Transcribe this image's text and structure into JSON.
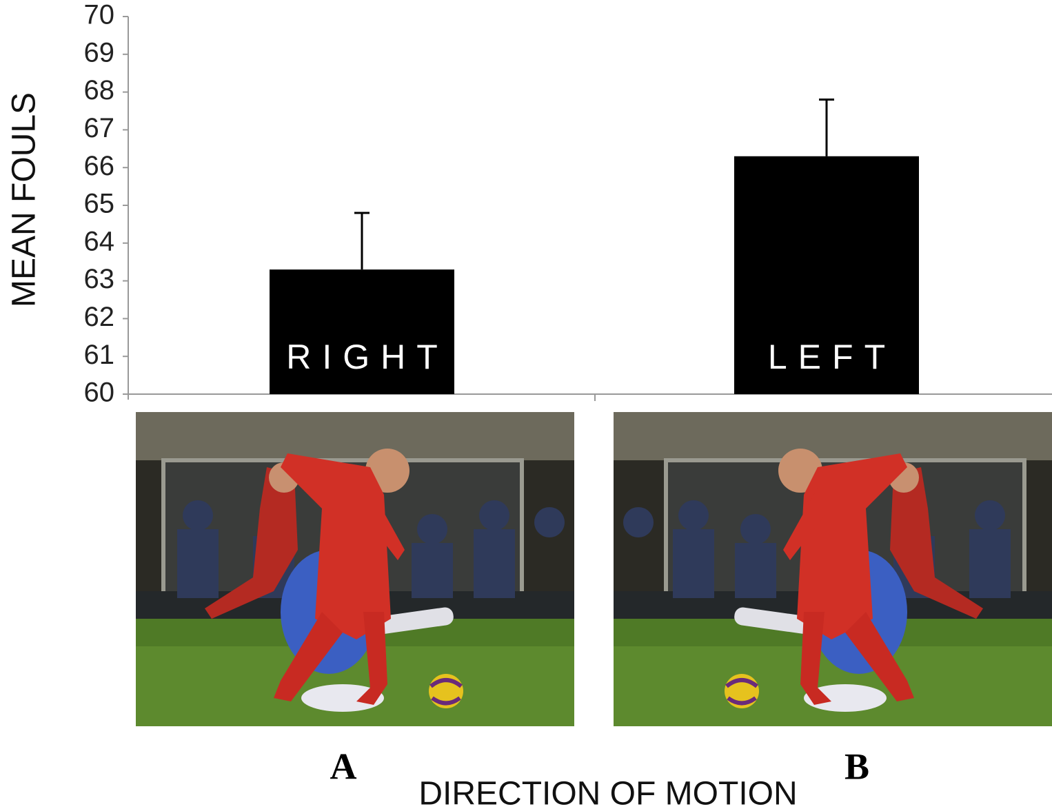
{
  "chart_data": {
    "type": "bar",
    "categories": [
      "RIGHT",
      "LEFT"
    ],
    "values": [
      63.3,
      66.3
    ],
    "errors": [
      1.5,
      1.5
    ],
    "color": "#000000",
    "ylabel": "MEAN FOULS",
    "xlabel": "DIRECTION OF MOTION",
    "panel_labels": [
      "A",
      "B"
    ],
    "ylim": [
      60,
      70
    ],
    "yticks": [
      60,
      61,
      62,
      63,
      64,
      65,
      66,
      67,
      68,
      69,
      70
    ]
  }
}
